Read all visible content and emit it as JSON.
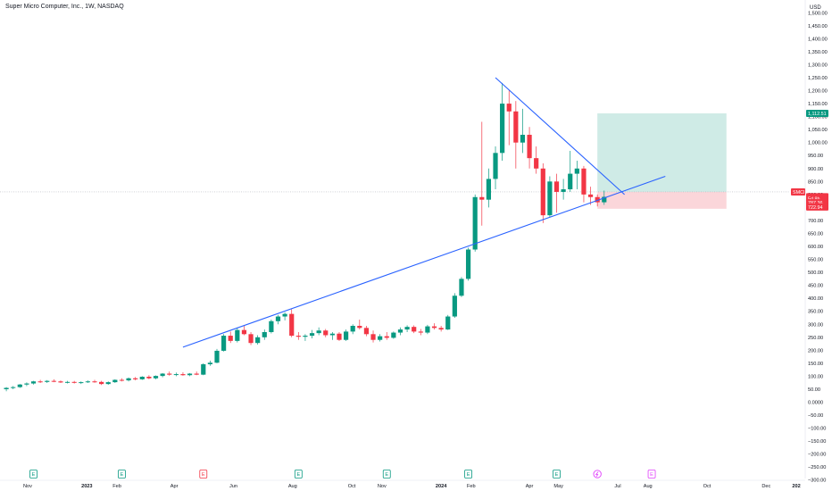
{
  "header": {
    "title": "Super Micro Computer, Inc., 1W, NASDAQ",
    "currency": "USD"
  },
  "chart_data": {
    "type": "candlestick",
    "symbol": "SMCI",
    "y_axis": {
      "ticks": [
        -300,
        -250,
        -200,
        -150,
        -100,
        -50,
        0,
        50,
        100,
        150,
        200,
        250,
        300,
        350,
        400,
        450,
        500,
        550,
        600,
        650,
        700,
        750,
        800,
        850,
        900,
        950,
        1000,
        1050,
        1100,
        1150,
        1200,
        1250,
        1300,
        1350,
        1400,
        1450,
        1500
      ],
      "tick_labels": [
        "−300.00",
        "−250.00",
        "−200.00",
        "−150.00",
        "−100.00",
        "−50.00",
        "0.0000",
        "50.00",
        "100.00",
        "150.00",
        "200.00",
        "250.00",
        "300.00",
        "350.00",
        "400.00",
        "450.00",
        "500.00",
        "550.00",
        "600.00",
        "650.00",
        "700.00",
        "750.00",
        "800.00",
        "850.00",
        "900.00",
        "950.00",
        "1,000.00",
        "1,050.00",
        "1,100.00",
        "1,150.00",
        "1,200.00",
        "1,250.00",
        "1,300.00",
        "1,350.00",
        "1,400.00",
        "1,450.00",
        "1,500.00"
      ]
    },
    "x_axis": {
      "labels": [
        {
          "text": "Nov",
          "date": "2022-11-01",
          "bold": false
        },
        {
          "text": "2023",
          "date": "2023-01-01",
          "bold": true
        },
        {
          "text": "Feb",
          "date": "2023-02-01",
          "bold": false
        },
        {
          "text": "Apr",
          "date": "2023-04-01",
          "bold": false
        },
        {
          "text": "Jun",
          "date": "2023-06-01",
          "bold": false
        },
        {
          "text": "Aug",
          "date": "2023-08-01",
          "bold": false
        },
        {
          "text": "Oct",
          "date": "2023-10-01",
          "bold": false
        },
        {
          "text": "Nov",
          "date": "2023-11-01",
          "bold": false
        },
        {
          "text": "2024",
          "date": "2024-01-01",
          "bold": true
        },
        {
          "text": "Feb",
          "date": "2024-02-01",
          "bold": false
        },
        {
          "text": "Apr",
          "date": "2024-04-01",
          "bold": false
        },
        {
          "text": "May",
          "date": "2024-05-01",
          "bold": false
        },
        {
          "text": "Jul",
          "date": "2024-07-01",
          "bold": false
        },
        {
          "text": "Aug",
          "date": "2024-08-01",
          "bold": false
        },
        {
          "text": "Oct",
          "date": "2024-10-01",
          "bold": false
        },
        {
          "text": "Dec",
          "date": "2024-12-01",
          "bold": false
        },
        {
          "text": "202",
          "date": "2025-01-01",
          "bold": true
        }
      ]
    },
    "candles": [
      {
        "date": "2022-10-10",
        "open": 50,
        "high": 58,
        "low": 42,
        "close": 55
      },
      {
        "date": "2022-10-17",
        "open": 55,
        "high": 62,
        "low": 50,
        "close": 58
      },
      {
        "date": "2022-10-24",
        "open": 58,
        "high": 70,
        "low": 55,
        "close": 68
      },
      {
        "date": "2022-10-31",
        "open": 68,
        "high": 76,
        "low": 62,
        "close": 72
      },
      {
        "date": "2022-11-07",
        "open": 72,
        "high": 82,
        "low": 68,
        "close": 80
      },
      {
        "date": "2022-11-14",
        "open": 80,
        "high": 86,
        "low": 74,
        "close": 78
      },
      {
        "date": "2022-11-21",
        "open": 78,
        "high": 85,
        "low": 74,
        "close": 82
      },
      {
        "date": "2022-11-28",
        "open": 82,
        "high": 88,
        "low": 77,
        "close": 80
      },
      {
        "date": "2022-12-05",
        "open": 80,
        "high": 84,
        "low": 74,
        "close": 76
      },
      {
        "date": "2022-12-12",
        "open": 76,
        "high": 82,
        "low": 72,
        "close": 78
      },
      {
        "date": "2022-12-19",
        "open": 78,
        "high": 82,
        "low": 72,
        "close": 75
      },
      {
        "date": "2022-12-26",
        "open": 75,
        "high": 80,
        "low": 70,
        "close": 77
      },
      {
        "date": "2023-01-02",
        "open": 77,
        "high": 84,
        "low": 74,
        "close": 80
      },
      {
        "date": "2023-01-09",
        "open": 80,
        "high": 86,
        "low": 75,
        "close": 78
      },
      {
        "date": "2023-01-16",
        "open": 78,
        "high": 82,
        "low": 66,
        "close": 70
      },
      {
        "date": "2023-01-23",
        "open": 70,
        "high": 80,
        "low": 67,
        "close": 77
      },
      {
        "date": "2023-01-30",
        "open": 77,
        "high": 88,
        "low": 74,
        "close": 86
      },
      {
        "date": "2023-02-06",
        "open": 86,
        "high": 92,
        "low": 80,
        "close": 84
      },
      {
        "date": "2023-02-13",
        "open": 84,
        "high": 95,
        "low": 80,
        "close": 92
      },
      {
        "date": "2023-02-20",
        "open": 92,
        "high": 97,
        "low": 84,
        "close": 88
      },
      {
        "date": "2023-02-27",
        "open": 88,
        "high": 100,
        "low": 86,
        "close": 98
      },
      {
        "date": "2023-03-06",
        "open": 98,
        "high": 104,
        "low": 88,
        "close": 92
      },
      {
        "date": "2023-03-13",
        "open": 92,
        "high": 103,
        "low": 88,
        "close": 101
      },
      {
        "date": "2023-03-20",
        "open": 101,
        "high": 112,
        "low": 96,
        "close": 110
      },
      {
        "date": "2023-03-27",
        "open": 110,
        "high": 118,
        "low": 102,
        "close": 106
      },
      {
        "date": "2023-04-03",
        "open": 106,
        "high": 114,
        "low": 100,
        "close": 108
      },
      {
        "date": "2023-04-10",
        "open": 108,
        "high": 115,
        "low": 102,
        "close": 104
      },
      {
        "date": "2023-04-17",
        "open": 104,
        "high": 112,
        "low": 100,
        "close": 110
      },
      {
        "date": "2023-04-24",
        "open": 110,
        "high": 118,
        "low": 104,
        "close": 106
      },
      {
        "date": "2023-05-01",
        "open": 106,
        "high": 150,
        "low": 104,
        "close": 146
      },
      {
        "date": "2023-05-08",
        "open": 146,
        "high": 160,
        "low": 140,
        "close": 152
      },
      {
        "date": "2023-05-15",
        "open": 152,
        "high": 205,
        "low": 150,
        "close": 198
      },
      {
        "date": "2023-05-22",
        "open": 198,
        "high": 262,
        "low": 195,
        "close": 256
      },
      {
        "date": "2023-05-29",
        "open": 256,
        "high": 272,
        "low": 228,
        "close": 236
      },
      {
        "date": "2023-06-05",
        "open": 236,
        "high": 286,
        "low": 230,
        "close": 278
      },
      {
        "date": "2023-06-12",
        "open": 278,
        "high": 294,
        "low": 258,
        "close": 262
      },
      {
        "date": "2023-06-19",
        "open": 262,
        "high": 270,
        "low": 220,
        "close": 228
      },
      {
        "date": "2023-06-26",
        "open": 228,
        "high": 258,
        "low": 222,
        "close": 250
      },
      {
        "date": "2023-07-03",
        "open": 250,
        "high": 280,
        "low": 240,
        "close": 270
      },
      {
        "date": "2023-07-10",
        "open": 270,
        "high": 318,
        "low": 265,
        "close": 312
      },
      {
        "date": "2023-07-17",
        "open": 312,
        "high": 336,
        "low": 300,
        "close": 330
      },
      {
        "date": "2023-07-24",
        "open": 330,
        "high": 346,
        "low": 315,
        "close": 340
      },
      {
        "date": "2023-07-31",
        "open": 340,
        "high": 358,
        "low": 250,
        "close": 256
      },
      {
        "date": "2023-08-07",
        "open": 256,
        "high": 270,
        "low": 240,
        "close": 252
      },
      {
        "date": "2023-08-14",
        "open": 252,
        "high": 262,
        "low": 236,
        "close": 256
      },
      {
        "date": "2023-08-21",
        "open": 256,
        "high": 278,
        "low": 246,
        "close": 266
      },
      {
        "date": "2023-08-28",
        "open": 266,
        "high": 288,
        "low": 258,
        "close": 276
      },
      {
        "date": "2023-09-04",
        "open": 276,
        "high": 282,
        "low": 250,
        "close": 258
      },
      {
        "date": "2023-09-11",
        "open": 258,
        "high": 270,
        "low": 240,
        "close": 264
      },
      {
        "date": "2023-09-18",
        "open": 264,
        "high": 270,
        "low": 236,
        "close": 240
      },
      {
        "date": "2023-09-25",
        "open": 240,
        "high": 280,
        "low": 236,
        "close": 272
      },
      {
        "date": "2023-10-02",
        "open": 272,
        "high": 300,
        "low": 262,
        "close": 294
      },
      {
        "date": "2023-10-09",
        "open": 294,
        "high": 318,
        "low": 280,
        "close": 286
      },
      {
        "date": "2023-10-16",
        "open": 286,
        "high": 294,
        "low": 254,
        "close": 262
      },
      {
        "date": "2023-10-23",
        "open": 262,
        "high": 276,
        "low": 230,
        "close": 240
      },
      {
        "date": "2023-10-30",
        "open": 240,
        "high": 262,
        "low": 234,
        "close": 254
      },
      {
        "date": "2023-11-06",
        "open": 254,
        "high": 270,
        "low": 240,
        "close": 248
      },
      {
        "date": "2023-11-13",
        "open": 248,
        "high": 272,
        "low": 244,
        "close": 268
      },
      {
        "date": "2023-11-20",
        "open": 268,
        "high": 288,
        "low": 258,
        "close": 280
      },
      {
        "date": "2023-11-27",
        "open": 280,
        "high": 296,
        "low": 270,
        "close": 290
      },
      {
        "date": "2023-12-04",
        "open": 290,
        "high": 296,
        "low": 266,
        "close": 272
      },
      {
        "date": "2023-12-11",
        "open": 272,
        "high": 282,
        "low": 258,
        "close": 268
      },
      {
        "date": "2023-12-18",
        "open": 268,
        "high": 298,
        "low": 262,
        "close": 292
      },
      {
        "date": "2023-12-25",
        "open": 292,
        "high": 304,
        "low": 280,
        "close": 286
      },
      {
        "date": "2024-01-01",
        "open": 286,
        "high": 294,
        "low": 272,
        "close": 280
      },
      {
        "date": "2024-01-08",
        "open": 280,
        "high": 336,
        "low": 278,
        "close": 330
      },
      {
        "date": "2024-01-15",
        "open": 330,
        "high": 420,
        "low": 325,
        "close": 410
      },
      {
        "date": "2024-01-22",
        "open": 410,
        "high": 482,
        "low": 405,
        "close": 475
      },
      {
        "date": "2024-01-29",
        "open": 475,
        "high": 595,
        "low": 468,
        "close": 588
      },
      {
        "date": "2024-02-05",
        "open": 588,
        "high": 800,
        "low": 580,
        "close": 790
      },
      {
        "date": "2024-02-12",
        "open": 790,
        "high": 1080,
        "low": 680,
        "close": 780
      },
      {
        "date": "2024-02-19",
        "open": 780,
        "high": 900,
        "low": 750,
        "close": 860
      },
      {
        "date": "2024-02-26",
        "open": 860,
        "high": 985,
        "low": 820,
        "close": 960
      },
      {
        "date": "2024-03-04",
        "open": 960,
        "high": 1230,
        "low": 930,
        "close": 1150
      },
      {
        "date": "2024-03-11",
        "open": 1150,
        "high": 1200,
        "low": 990,
        "close": 1120
      },
      {
        "date": "2024-03-18",
        "open": 1120,
        "high": 1160,
        "low": 900,
        "close": 1000
      },
      {
        "date": "2024-03-25",
        "open": 1000,
        "high": 1130,
        "low": 960,
        "close": 1030
      },
      {
        "date": "2024-04-01",
        "open": 1030,
        "high": 1060,
        "low": 900,
        "close": 940
      },
      {
        "date": "2024-04-08",
        "open": 940,
        "high": 985,
        "low": 880,
        "close": 900
      },
      {
        "date": "2024-04-15",
        "open": 900,
        "high": 920,
        "low": 690,
        "close": 720
      },
      {
        "date": "2024-04-22",
        "open": 720,
        "high": 870,
        "low": 713,
        "close": 850
      },
      {
        "date": "2024-04-29",
        "open": 850,
        "high": 880,
        "low": 730,
        "close": 810
      },
      {
        "date": "2024-05-06",
        "open": 810,
        "high": 860,
        "low": 780,
        "close": 820
      },
      {
        "date": "2024-05-13",
        "open": 820,
        "high": 968,
        "low": 810,
        "close": 880
      },
      {
        "date": "2024-05-20",
        "open": 880,
        "high": 930,
        "low": 820,
        "close": 900
      },
      {
        "date": "2024-05-27",
        "open": 900,
        "high": 910,
        "low": 770,
        "close": 800
      },
      {
        "date": "2024-06-03",
        "open": 800,
        "high": 830,
        "low": 760,
        "close": 790
      },
      {
        "date": "2024-06-10",
        "open": 790,
        "high": 800,
        "low": 754,
        "close": 770
      },
      {
        "date": "2024-06-17",
        "open": 770,
        "high": 815,
        "low": 760,
        "close": 791
      }
    ],
    "trendlines": [
      {
        "name": "ascending-support",
        "color": "#2962ff",
        "from": {
          "date": "2023-04-10",
          "price": 212
        },
        "to": {
          "date": "2024-08-19",
          "price": 870
        }
      },
      {
        "date_note": "",
        "name": "descending-resistance",
        "color": "#2962ff",
        "from": {
          "date": "2024-02-26",
          "price": 1250
        },
        "to": {
          "date": "2024-07-08",
          "price": 800
        }
      }
    ],
    "position": {
      "entry": 810,
      "target": 1112.51,
      "stop": 745,
      "start_date": "2024-06-10",
      "end_date": "2024-10-21",
      "profit_color": "#cfebe6",
      "loss_color": "#fbd6da"
    },
    "reference_line": 810,
    "price_tags": [
      {
        "price": 1112.51,
        "label": "1,112.51",
        "color": "#089981"
      },
      {
        "price": 791.3,
        "label": "791.30",
        "color": "#f23645"
      },
      {
        "price": 784,
        "label": "5d 8h",
        "color": "#f23645"
      },
      {
        "price": 768,
        "label": "787.36",
        "color": "#f23645"
      },
      {
        "price": 752,
        "label": "722.94",
        "color": "#f23645"
      }
    ],
    "symbol_badge": {
      "text": "SMCI",
      "price": 810,
      "color": "#f23645"
    },
    "events": [
      {
        "type": "E",
        "date": "2022-11-07",
        "color": "#089981"
      },
      {
        "type": "E",
        "date": "2023-02-06",
        "color": "#089981"
      },
      {
        "type": "E",
        "date": "2023-05-01",
        "color": "#f23645"
      },
      {
        "type": "E",
        "date": "2023-08-07",
        "color": "#089981"
      },
      {
        "type": "E",
        "date": "2023-11-06",
        "color": "#089981"
      },
      {
        "type": "E",
        "date": "2024-01-29",
        "color": "#089981"
      },
      {
        "type": "E",
        "date": "2024-04-29",
        "color": "#089981"
      },
      {
        "type": "split",
        "date": "2024-06-10",
        "color": "#e040fb"
      },
      {
        "type": "E",
        "date": "2024-08-05",
        "color": "#e040fb"
      }
    ],
    "colors": {
      "up": "#089981",
      "down": "#f23645",
      "axis_text": "#131722",
      "grid": "#f0f3fa"
    }
  }
}
